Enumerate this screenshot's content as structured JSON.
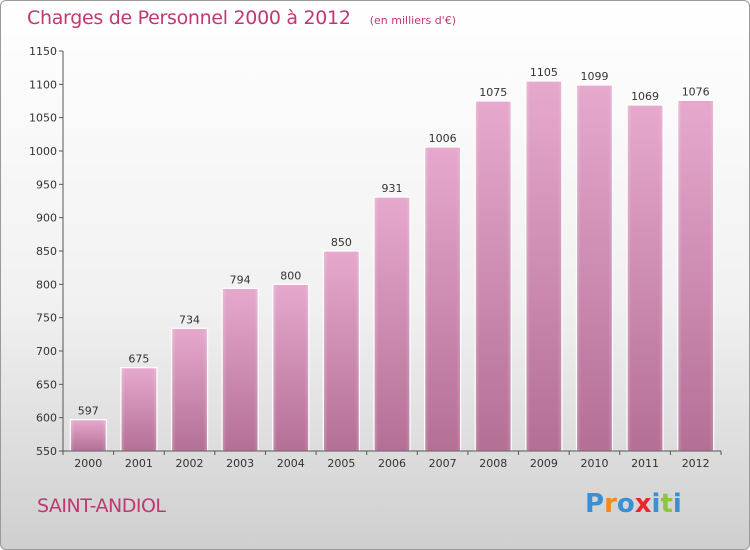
{
  "header": {
    "title": "Charges de Personnel 2000 à 2012",
    "subtitle": "(en milliers d'€)"
  },
  "footer": {
    "commune": "SAINT-ANDIOL",
    "brand": "Proxiti",
    "brand_letters": [
      "P",
      "r",
      "o",
      "x",
      "i",
      "t",
      "i"
    ],
    "brand_colors": [
      "#3b8fd6",
      "#f08a1c",
      "#3b8fd6",
      "#e8282b",
      "#3b8fd6",
      "#8cc63f",
      "#3b8fd6"
    ]
  },
  "colors": {
    "title": "#c03872",
    "bar_top": "#e6a9cd",
    "bar_bottom": "#b46f95",
    "axis": "#555555"
  },
  "chart_data": {
    "type": "bar",
    "title": "Charges de Personnel 2000 à 2012",
    "subtitle": "(en milliers d'€)",
    "xlabel": "",
    "ylabel": "",
    "categories": [
      "2000",
      "2001",
      "2002",
      "2003",
      "2004",
      "2005",
      "2006",
      "2007",
      "2008",
      "2009",
      "2010",
      "2011",
      "2012"
    ],
    "values": [
      597,
      675,
      734,
      794,
      800,
      850,
      931,
      1006,
      1075,
      1105,
      1099,
      1069,
      1076
    ],
    "ylim": [
      550,
      1150
    ],
    "yticks": [
      550,
      600,
      650,
      700,
      750,
      800,
      850,
      900,
      950,
      1000,
      1050,
      1100,
      1150
    ],
    "grid": false,
    "legend": "none"
  }
}
